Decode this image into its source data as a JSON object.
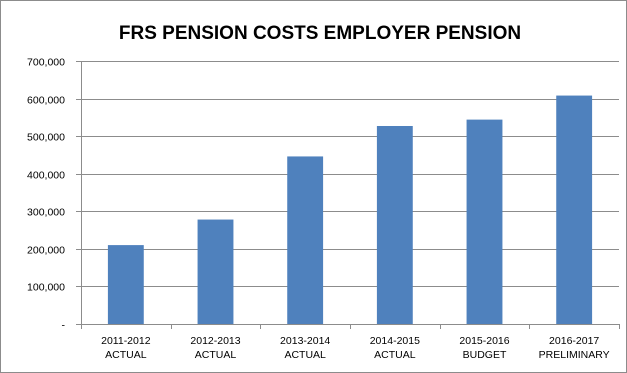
{
  "chart_data": {
    "type": "bar",
    "title": "FRS PENSION COSTS EMPLOYER PENSION",
    "categories": [
      [
        "2011-2012",
        "ACTUAL"
      ],
      [
        "2012-2013",
        "ACTUAL"
      ],
      [
        "2013-2014",
        "ACTUAL"
      ],
      [
        "2014-2015",
        "ACTUAL"
      ],
      [
        "2015-2016",
        "BUDGET"
      ],
      [
        "2016-2017",
        "PRELIMINARY"
      ]
    ],
    "values": [
      210000,
      278000,
      446000,
      527000,
      544000,
      608000
    ],
    "ylim": [
      0,
      700000
    ],
    "yticks": [
      0,
      100000,
      200000,
      300000,
      400000,
      500000,
      600000,
      700000
    ],
    "ytick_labels": [
      "-",
      "100,000",
      "200,000",
      "300,000",
      "400,000",
      "500,000",
      "600,000",
      "700,000"
    ],
    "grid": true,
    "legend": "none",
    "colors": {
      "bar": "#4f81bd",
      "grid": "#8c8c8c",
      "axis": "#8c8c8c"
    }
  }
}
